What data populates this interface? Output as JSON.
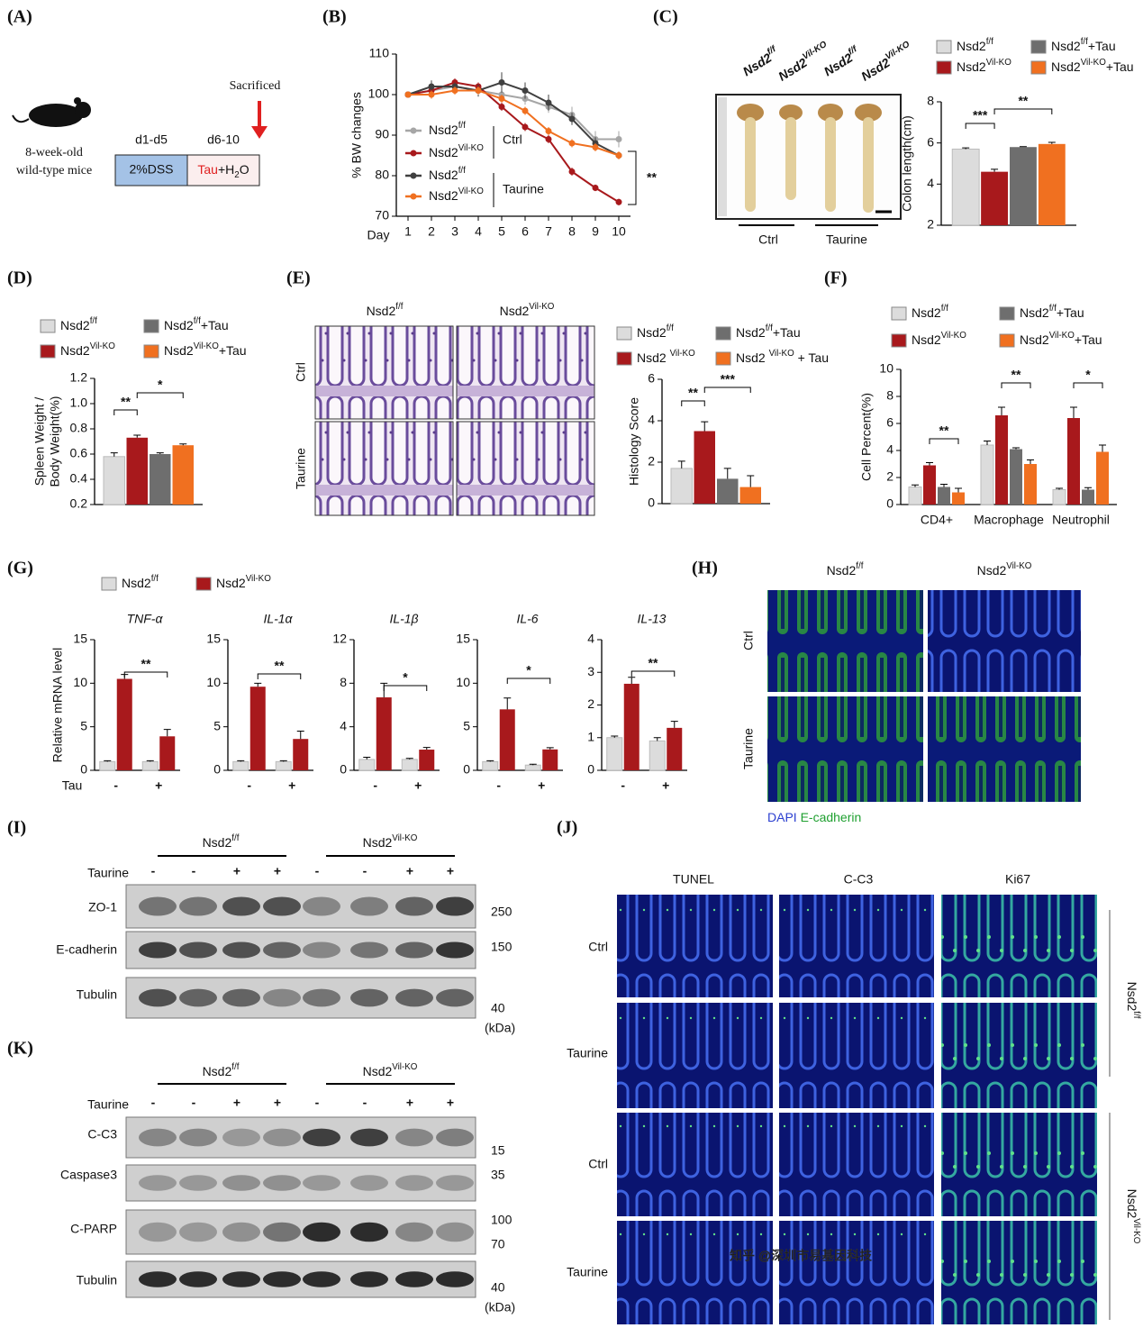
{
  "panels": {
    "A": {
      "label": "(A)",
      "mouse_lines": [
        "8-week-old",
        "wild-type mice"
      ],
      "sacrificed": "Sacrificed",
      "period1": "d1-d5",
      "period2": "d6-10",
      "box1": "2%DSS",
      "box2": [
        {
          "text": "Tau",
          "color": "#e02020"
        },
        {
          "text": "+H"
        },
        {
          "text": "2",
          "sub": true
        },
        {
          "text": "O"
        }
      ]
    },
    "B": {
      "label": "(B)"
    },
    "C": {
      "label": "(C)",
      "photo_labels": [
        [
          {
            "text": "Nsd2"
          },
          {
            "text": "f/f",
            "sup": true
          }
        ],
        [
          {
            "text": "Nsd2"
          },
          {
            "text": "Vil-KO",
            "sup": true
          }
        ],
        [
          {
            "text": "Nsd2"
          },
          {
            "text": "f/f",
            "sup": true
          }
        ],
        [
          {
            "text": "Nsd2"
          },
          {
            "text": "Vil-KO",
            "sup": true
          }
        ]
      ],
      "groups": [
        "Ctrl",
        "Taurine"
      ]
    },
    "D": {
      "label": "(D)"
    },
    "E": {
      "label": "(E)",
      "columns": [
        [
          {
            "text": "Nsd2"
          },
          {
            "text": "f/f",
            "sup": true
          }
        ],
        [
          {
            "text": "Nsd2"
          },
          {
            "text": "Vil-KO",
            "sup": true
          }
        ]
      ],
      "rows": [
        "Ctrl",
        "Taurine"
      ]
    },
    "F": {
      "label": "(F)"
    },
    "G": {
      "label": "(G)"
    },
    "H": {
      "label": "(H)",
      "columns": [
        [
          {
            "text": "Nsd2"
          },
          {
            "text": "f/f",
            "sup": true
          }
        ],
        [
          {
            "text": "Nsd2"
          },
          {
            "text": "Vil-KO",
            "sup": true
          }
        ]
      ],
      "rows": [
        "Ctrl",
        "Taurine"
      ],
      "caption": [
        {
          "text": "DAPI ",
          "color": "#2b3fd0"
        },
        {
          "text": "E-cadherin",
          "color": "#1fa030"
        }
      ]
    },
    "I": {
      "label": "(I)",
      "groups": [
        [
          {
            "text": "Nsd2"
          },
          {
            "text": "f/f",
            "sup": true
          }
        ],
        [
          {
            "text": "Nsd2"
          },
          {
            "text": "Vil-KO",
            "sup": true
          }
        ]
      ],
      "treatment": "Taurine",
      "lanes": [
        "-",
        "-",
        "+",
        "+",
        "-",
        "-",
        "+",
        "+"
      ],
      "rows": [
        "ZO-1",
        "E-cadherin",
        "Tubulin"
      ],
      "markers": [
        "250",
        "150",
        "40"
      ],
      "unit": "(kDa)"
    },
    "J": {
      "label": "(J)",
      "columns": [
        "TUNEL",
        "C-C3",
        "Ki67"
      ],
      "rows": [
        "Ctrl",
        "Taurine",
        "Ctrl",
        "Taurine"
      ],
      "groups": [
        [
          {
            "text": "Nsd2"
          },
          {
            "text": "f/f",
            "sup": true
          }
        ],
        [
          {
            "text": "Nsd2"
          },
          {
            "text": "Vil-KO",
            "sup": true
          }
        ]
      ]
    },
    "K": {
      "label": "(K)",
      "groups": [
        [
          {
            "text": "Nsd2"
          },
          {
            "text": "f/f",
            "sup": true
          }
        ],
        [
          {
            "text": "Nsd2"
          },
          {
            "text": "Vil-KO",
            "sup": true
          }
        ]
      ],
      "treatment": "Taurine",
      "lanes": [
        "-",
        "-",
        "+",
        "+",
        "-",
        "-",
        "+",
        "+"
      ],
      "rows": [
        "C-C3",
        "Caspase3",
        "C-PARP",
        "Tubulin"
      ],
      "markers": [
        "15",
        "35",
        "100",
        "70",
        "40"
      ],
      "unit": "(kDa)"
    },
    "watermark": "知乎 @深圳市易基因科技"
  },
  "chart_data": [
    {
      "type": "line",
      "ylabel": "% BW changes",
      "xlabel": "Day",
      "x": [
        1,
        2,
        3,
        4,
        5,
        6,
        7,
        8,
        9,
        10
      ],
      "xlim": [
        0.5,
        10.5
      ],
      "xticks": [
        1,
        2,
        3,
        4,
        5,
        6,
        7,
        8,
        9,
        10
      ],
      "ylim": [
        70,
        110
      ],
      "yticks": [
        70,
        80,
        90,
        100,
        110
      ],
      "series": [
        {
          "name": [
            {
              "text": "Nsd2"
            },
            {
              "text": "f/f",
              "sup": true
            }
          ],
          "color": "#a6a6a6",
          "values": [
            100,
            101,
            102,
            101,
            100,
            99,
            97,
            95,
            89,
            89
          ],
          "errors": [
            0.5,
            1,
            1,
            1,
            1,
            1.5,
            1.5,
            2,
            2,
            2
          ]
        },
        {
          "name": [
            {
              "text": "Nsd2"
            },
            {
              "text": "Vil-KO",
              "sup": true
            }
          ],
          "color": "#a8191c",
          "values": [
            100,
            101,
            103,
            102,
            97,
            92,
            89,
            81,
            77,
            73.5
          ],
          "errors": [
            0.5,
            1.5,
            1,
            1,
            1,
            1,
            1,
            1,
            0.8,
            0.8
          ]
        },
        {
          "name": [
            {
              "text": "Nsd2"
            },
            {
              "text": "f/f",
              "sup": true
            }
          ],
          "color": "#404040",
          "values": [
            100,
            102,
            102,
            101,
            103,
            101,
            98,
            94,
            88,
            85
          ],
          "errors": [
            0.5,
            1.5,
            1,
            1.5,
            2.5,
            2,
            2,
            1.5,
            1.5,
            1
          ]
        },
        {
          "name": [
            {
              "text": "Nsd2"
            },
            {
              "text": "Vil-KO",
              "sup": true
            }
          ],
          "color": "#f07020",
          "values": [
            100,
            100,
            101,
            101,
            99,
            96,
            91,
            88,
            87,
            85
          ],
          "errors": [
            0.5,
            1,
            1,
            1,
            1,
            1,
            1,
            1,
            1,
            1
          ]
        }
      ],
      "annotations": [
        "Ctrl",
        "Taurine",
        "**"
      ]
    },
    {
      "type": "bar",
      "ylabel": "Colon length(cm)",
      "categories": [
        null
      ],
      "ylim": [
        2,
        8
      ],
      "yticks": [
        2,
        4,
        6,
        8
      ],
      "series": [
        {
          "name": [
            {
              "text": "Nsd2"
            },
            {
              "text": "f/f",
              "sup": true
            }
          ],
          "color": "#dcdcdc",
          "values": [
            5.7
          ],
          "errors": [
            0.06
          ]
        },
        {
          "name": [
            {
              "text": "Nsd2"
            },
            {
              "text": "Vil-KO",
              "sup": true
            }
          ],
          "color": "#a8191c",
          "values": [
            4.6
          ],
          "errors": [
            0.12
          ]
        },
        {
          "name": [
            {
              "text": "Nsd2"
            },
            {
              "text": "f/f",
              "sup": true
            },
            {
              "text": "+Tau"
            }
          ],
          "color": "#6e6e6e",
          "values": [
            5.8
          ],
          "errors": [
            0.02
          ]
        },
        {
          "name": [
            {
              "text": "Nsd2"
            },
            {
              "text": "Vil-KO",
              "sup": true
            },
            {
              "text": "+Tau"
            }
          ],
          "color": "#f07020",
          "values": [
            5.95
          ],
          "errors": [
            0.08
          ]
        }
      ],
      "annotations": [
        "***",
        "**"
      ]
    },
    {
      "type": "bar",
      "ylabel": [
        "Spleen Weight /",
        "Body Weight(%)"
      ],
      "categories": [
        null
      ],
      "ylim": [
        0.2,
        1.2
      ],
      "yticks": [
        0.2,
        0.4,
        0.6,
        0.8,
        {
          "value": 1,
          "label": "1.0"
        },
        1.2
      ],
      "series": [
        {
          "name": [
            {
              "text": "Nsd2"
            },
            {
              "text": "f/f",
              "sup": true
            }
          ],
          "color": "#dcdcdc",
          "values": [
            0.58
          ],
          "errors": [
            0.03
          ]
        },
        {
          "name": [
            {
              "text": "Nsd2"
            },
            {
              "text": "Vil-KO",
              "sup": true
            }
          ],
          "color": "#a8191c",
          "values": [
            0.73
          ],
          "errors": [
            0.02
          ]
        },
        {
          "name": [
            {
              "text": "Nsd2"
            },
            {
              "text": "f/f",
              "sup": true
            },
            {
              "text": "+Tau"
            }
          ],
          "color": "#6e6e6e",
          "values": [
            0.6
          ],
          "errors": [
            0.01
          ]
        },
        {
          "name": [
            {
              "text": "Nsd2"
            },
            {
              "text": "Vil-KO",
              "sup": true
            },
            {
              "text": "+Tau"
            }
          ],
          "color": "#f07020",
          "values": [
            0.67
          ],
          "errors": [
            0.01
          ]
        }
      ],
      "annotations": [
        "**",
        "*"
      ]
    },
    {
      "type": "bar",
      "ylabel": "Histology Score",
      "categories": [
        null
      ],
      "ylim": [
        0,
        6
      ],
      "yticks": [
        0,
        2,
        4,
        6
      ],
      "series": [
        {
          "name": [
            {
              "text": "Nsd2"
            },
            {
              "text": "f/f",
              "sup": true
            }
          ],
          "color": "#dcdcdc",
          "values": [
            1.7
          ],
          "errors": [
            0.35
          ]
        },
        {
          "name": [
            {
              "text": "Nsd2 "
            },
            {
              "text": "Vil-KO",
              "sup": true
            }
          ],
          "color": "#a8191c",
          "values": [
            3.5
          ],
          "errors": [
            0.45
          ]
        },
        {
          "name": [
            {
              "text": "Nsd2"
            },
            {
              "text": "f/f",
              "sup": true
            },
            {
              "text": "+Tau"
            }
          ],
          "color": "#6e6e6e",
          "values": [
            1.2
          ],
          "errors": [
            0.5
          ]
        },
        {
          "name": [
            {
              "text": "Nsd2 "
            },
            {
              "text": "Vil-KO",
              "sup": true
            },
            {
              "text": " + Tau"
            }
          ],
          "color": "#f07020",
          "values": [
            0.8
          ],
          "errors": [
            0.55
          ]
        }
      ],
      "annotations": [
        "**",
        "***"
      ]
    },
    {
      "type": "bar",
      "ylabel": "Cell Percent(%)",
      "categories": [
        "CD4+",
        "Macrophage",
        "Neutrophil"
      ],
      "ylim": [
        0,
        10
      ],
      "yticks": [
        0,
        2,
        4,
        6,
        8,
        10
      ],
      "series": [
        {
          "name": [
            {
              "text": "Nsd2"
            },
            {
              "text": "f/f",
              "sup": true
            }
          ],
          "color": "#dcdcdc",
          "values": [
            1.3,
            4.4,
            1.1
          ],
          "errors": [
            0.15,
            0.3,
            0.1
          ]
        },
        {
          "name": [
            {
              "text": "Nsd2"
            },
            {
              "text": "Vil-KO",
              "sup": true
            }
          ],
          "color": "#a8191c",
          "values": [
            2.9,
            6.6,
            6.4
          ],
          "errors": [
            0.2,
            0.6,
            0.8
          ]
        },
        {
          "name": [
            {
              "text": "Nsd2"
            },
            {
              "text": "f/f",
              "sup": true
            },
            {
              "text": "+Tau"
            }
          ],
          "color": "#6e6e6e",
          "values": [
            1.3,
            4.1,
            1.1
          ],
          "errors": [
            0.2,
            0.1,
            0.15
          ]
        },
        {
          "name": [
            {
              "text": "Nsd2"
            },
            {
              "text": "Vil-KO",
              "sup": true
            },
            {
              "text": "+Tau"
            }
          ],
          "color": "#f07020",
          "values": [
            0.9,
            3,
            3.9
          ],
          "errors": [
            0.3,
            0.3,
            0.5
          ]
        }
      ],
      "annotations": [
        "**",
        "**",
        "*"
      ]
    },
    {
      "type": "bar",
      "title": "TNF-α",
      "ylabel": "Relative mRNA level",
      "xlabel": "Tau",
      "categories": [
        "-",
        "+"
      ],
      "ylim": [
        0,
        15
      ],
      "yticks": [
        0,
        5,
        10,
        15
      ],
      "series": [
        {
          "name": [
            {
              "text": "Nsd2"
            },
            {
              "text": "f/f",
              "sup": true
            }
          ],
          "color": "#dcdcdc",
          "values": [
            1,
            1
          ],
          "errors": [
            0.1,
            0.1
          ]
        },
        {
          "name": [
            {
              "text": "Nsd2"
            },
            {
              "text": "Vil-KO",
              "sup": true
            }
          ],
          "color": "#a8191c",
          "values": [
            10.5,
            3.9
          ],
          "errors": [
            0.5,
            0.8
          ]
        }
      ],
      "annotations": [
        "**"
      ]
    },
    {
      "type": "bar",
      "title": "IL-1α",
      "categories": [
        "-",
        "+"
      ],
      "ylim": [
        0,
        15
      ],
      "yticks": [
        0,
        5,
        10,
        15
      ],
      "series": [
        {
          "color": "#dcdcdc",
          "values": [
            1,
            1
          ],
          "errors": [
            0.1,
            0.1
          ]
        },
        {
          "color": "#a8191c",
          "values": [
            9.6,
            3.6
          ],
          "errors": [
            0.4,
            0.9
          ]
        }
      ],
      "annotations": [
        "**"
      ]
    },
    {
      "type": "bar",
      "title": "IL-1β",
      "categories": [
        "-",
        "+"
      ],
      "ylim": [
        0,
        12
      ],
      "yticks": [
        0,
        4,
        8,
        12
      ],
      "series": [
        {
          "color": "#dcdcdc",
          "values": [
            1,
            1
          ],
          "errors": [
            0.2,
            0.1
          ]
        },
        {
          "color": "#a8191c",
          "values": [
            6.7,
            1.9
          ],
          "errors": [
            1.3,
            0.2
          ]
        }
      ],
      "annotations": [
        "*"
      ]
    },
    {
      "type": "bar",
      "title": "IL-6",
      "categories": [
        "-",
        "+"
      ],
      "ylim": [
        0,
        15
      ],
      "yticks": [
        0,
        5,
        10,
        15
      ],
      "series": [
        {
          "color": "#dcdcdc",
          "values": [
            1,
            0.6
          ],
          "errors": [
            0.1,
            0.1
          ]
        },
        {
          "color": "#a8191c",
          "values": [
            7,
            2.4
          ],
          "errors": [
            1.3,
            0.2
          ]
        }
      ],
      "annotations": [
        "*"
      ]
    },
    {
      "type": "bar",
      "title": "IL-13",
      "categories": [
        "-",
        "+"
      ],
      "ylim": [
        0,
        4
      ],
      "yticks": [
        0,
        1,
        2,
        3,
        4
      ],
      "series": [
        {
          "color": "#dcdcdc",
          "values": [
            1,
            0.9
          ],
          "errors": [
            0.05,
            0.1
          ]
        },
        {
          "color": "#a8191c",
          "values": [
            2.65,
            1.3
          ],
          "errors": [
            0.2,
            0.2
          ]
        }
      ],
      "annotations": [
        "**"
      ]
    }
  ]
}
